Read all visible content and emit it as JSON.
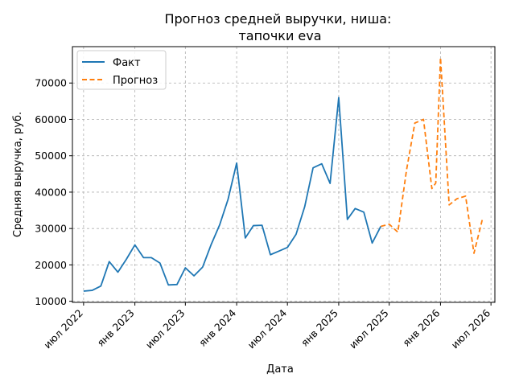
{
  "chart_data": {
    "type": "line",
    "title": "Прогноз средней выручки, ниша:\nтапочки eva",
    "xlabel": "Дата",
    "ylabel": "Средняя выручка, руб.",
    "ylim": [
      9700,
      80000
    ],
    "xlim": [
      "2022-05-22",
      "2026-07-15"
    ],
    "yticks": [
      10000,
      20000,
      30000,
      40000,
      50000,
      60000,
      70000
    ],
    "xticks": [
      {
        "date": "2022-07-01",
        "label": "июл 2022"
      },
      {
        "date": "2023-01-01",
        "label": "янв 2023"
      },
      {
        "date": "2023-07-01",
        "label": "июл 2023"
      },
      {
        "date": "2024-01-01",
        "label": "янв 2024"
      },
      {
        "date": "2024-07-01",
        "label": "июл 2024"
      },
      {
        "date": "2025-01-01",
        "label": "янв 2025"
      },
      {
        "date": "2025-07-01",
        "label": "июл 2025"
      },
      {
        "date": "2026-01-01",
        "label": "янв 2026"
      },
      {
        "date": "2026-07-01",
        "label": "июл 2026"
      }
    ],
    "grid": true,
    "legend_position": "top-left",
    "series": [
      {
        "name": "Факт",
        "color": "#1f77b4",
        "style": "solid",
        "x": [
          "2022-07-01",
          "2022-08-01",
          "2022-09-01",
          "2022-10-01",
          "2022-11-01",
          "2022-12-01",
          "2023-01-01",
          "2023-02-01",
          "2023-03-01",
          "2023-04-01",
          "2023-05-01",
          "2023-06-01",
          "2023-07-01",
          "2023-08-01",
          "2023-09-01",
          "2023-10-01",
          "2023-11-01",
          "2023-12-01",
          "2024-01-01",
          "2024-02-01",
          "2024-03-01",
          "2024-04-01",
          "2024-05-01",
          "2024-06-01",
          "2024-07-01",
          "2024-08-01",
          "2024-09-01",
          "2024-10-01",
          "2024-11-01",
          "2024-12-01",
          "2025-01-01",
          "2025-02-01",
          "2025-03-01",
          "2025-04-01",
          "2025-05-01",
          "2025-06-01"
        ],
        "y": [
          12800,
          13000,
          14200,
          20900,
          18000,
          21500,
          25500,
          22000,
          22000,
          20500,
          14500,
          14600,
          19200,
          17000,
          19400,
          25500,
          31000,
          38000,
          48000,
          27400,
          30800,
          30900,
          22800,
          23800,
          24800,
          28400,
          36000,
          46700,
          47800,
          42400,
          66000,
          32500,
          35500,
          34500,
          26000,
          30600
        ]
      },
      {
        "name": "Прогноз",
        "color": "#ff7f0e",
        "style": "dashed",
        "x": [
          "2025-06-01",
          "2025-07-01",
          "2025-08-01",
          "2025-09-01",
          "2025-10-01",
          "2025-11-01",
          "2025-12-01",
          "2025-12-15",
          "2026-01-01",
          "2026-02-01",
          "2026-03-01",
          "2026-04-01",
          "2026-05-01",
          "2026-06-01"
        ],
        "y": [
          30600,
          31200,
          29000,
          46000,
          59000,
          60000,
          41000,
          42500,
          77000,
          36500,
          38200,
          38900,
          23200,
          32800
        ]
      }
    ]
  }
}
